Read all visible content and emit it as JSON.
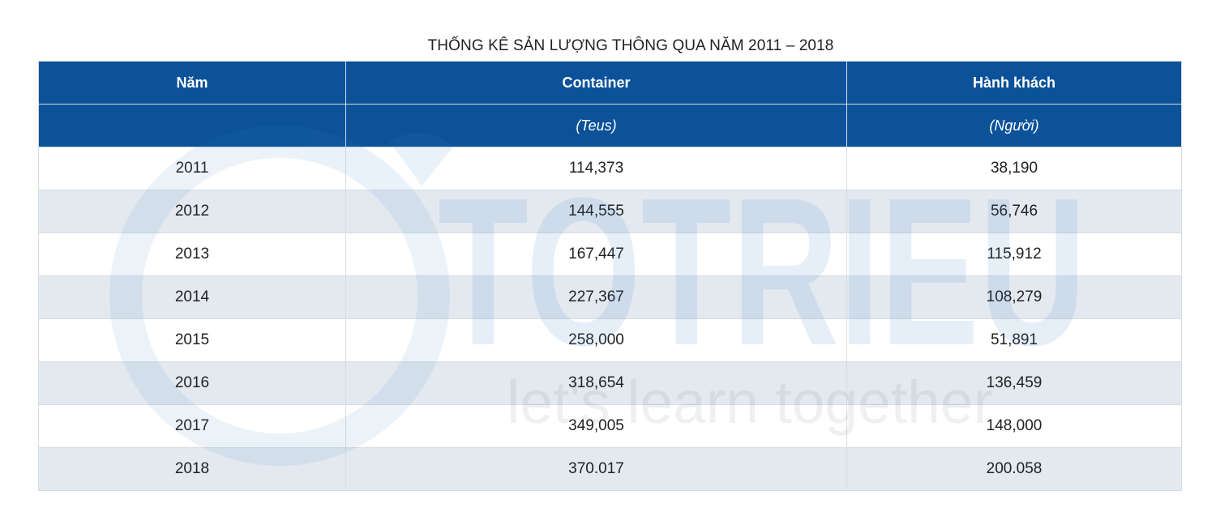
{
  "chart_data": {
    "type": "table",
    "title": "THỐNG KÊ SẢN LƯỢNG THÔNG QUA NĂM 2011 – 2018",
    "columns": [
      "Năm",
      "Container",
      "Hành khách"
    ],
    "units": [
      "",
      "(Teus)",
      "(Người)"
    ],
    "rows": [
      [
        "2011",
        "114,373",
        "38,190"
      ],
      [
        "2012",
        "144,555",
        "56,746"
      ],
      [
        "2013",
        "167,447",
        "115,912"
      ],
      [
        "2014",
        "227,367",
        "108,279"
      ],
      [
        "2015",
        "258,000",
        "51,891"
      ],
      [
        "2016",
        "318,654",
        "136,459"
      ],
      [
        "2017",
        "349,005",
        "148,000"
      ],
      [
        "2018",
        "370.017",
        "200.058"
      ]
    ],
    "colors": {
      "header_bg": "#0b5299",
      "header_text": "#ffffff",
      "stripe": "#e6ebf1"
    }
  },
  "watermark": {
    "brand": "TOTRIEU",
    "tagline": "let's learn together"
  }
}
